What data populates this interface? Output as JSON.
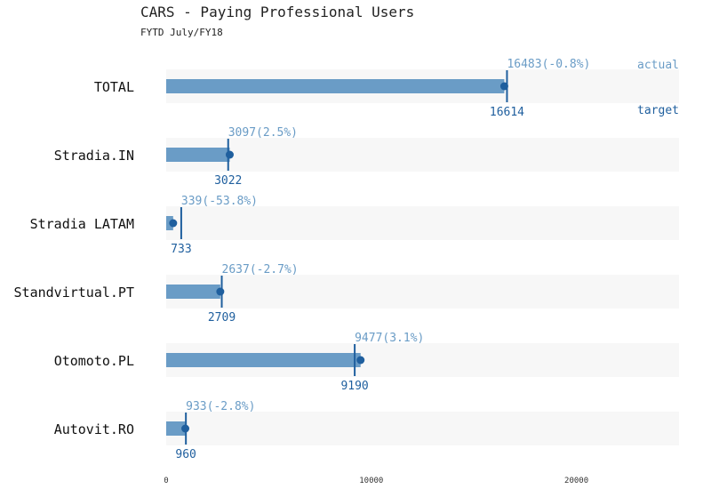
{
  "chart_data": {
    "type": "bar",
    "title": "CARS - Paying Professional Users",
    "subtitle": "FYTD July/FY18",
    "xlim": [
      0,
      25000
    ],
    "xticks": [
      0,
      10000,
      20000
    ],
    "grid": false,
    "legend": {
      "actual_label": "actual",
      "target_label": "target",
      "placement": "right"
    },
    "categories": [
      "TOTAL",
      "Stradia.IN",
      "Stradia LATAM",
      "Standvirtual.PT",
      "Otomoto.PL",
      "Autovit.RO"
    ],
    "actual": [
      16483,
      3097,
      339,
      2637,
      9477,
      933
    ],
    "target": [
      16614,
      3022,
      733,
      2709,
      9190,
      960
    ],
    "actual_labels": [
      "16483(-0.8%)",
      "3097(2.5%)",
      "339(-53.8%)",
      "2637(-2.7%)",
      "9477(3.1%)",
      "933(-2.8%)"
    ],
    "target_labels": [
      "16614",
      "3022",
      "733",
      "2709",
      "9190",
      "960"
    ],
    "colors": {
      "bar": "#6a9cc6",
      "track": "#f7f7f7",
      "target_line": "#1f5f9e",
      "dot": "#1f5f9e",
      "actual_label": "#6a9cc6",
      "target_label": "#1f5f9e",
      "category_label": "#111111",
      "tick": "#333333"
    }
  }
}
